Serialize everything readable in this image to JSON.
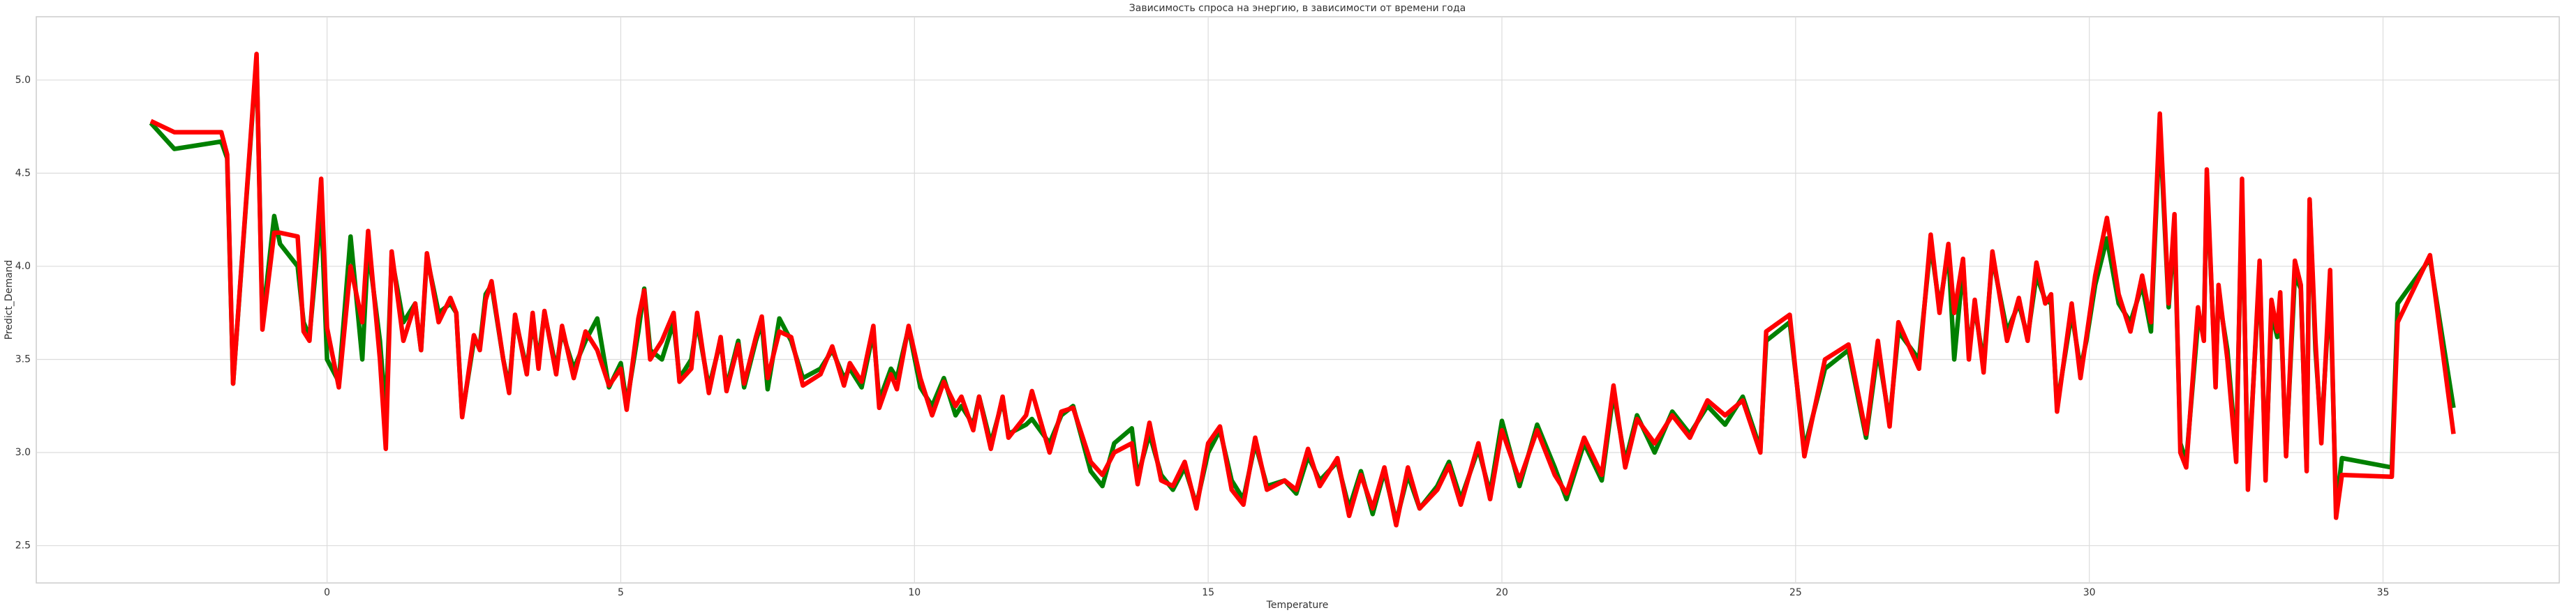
{
  "chart_data": {
    "type": "line",
    "title": "Зависимость спроса на энергию, в зависимости от времени года",
    "xlabel": "Temperature",
    "ylabel": "Predict_Demand",
    "xlim": [
      -4.95,
      38.0
    ],
    "ylim": [
      2.3,
      5.34
    ],
    "xticks": [
      0,
      5,
      10,
      15,
      20,
      25,
      30,
      35
    ],
    "yticks": [
      2.5,
      {
        "value": 3,
        "label": "3.0"
      },
      3.5,
      {
        "value": 4,
        "label": "4.0"
      },
      4.5,
      {
        "value": 5,
        "label": "5.0"
      }
    ],
    "grid": true,
    "x": [
      -3.0,
      -2.6,
      -1.8,
      -1.7,
      -1.6,
      -1.2,
      -1.1,
      -0.9,
      -0.8,
      -0.5,
      -0.4,
      -0.3,
      -0.1,
      0.0,
      0.2,
      0.4,
      0.6,
      0.7,
      0.9,
      1.0,
      1.1,
      1.3,
      1.5,
      1.6,
      1.7,
      1.9,
      2.1,
      2.2,
      2.3,
      2.5,
      2.6,
      2.7,
      2.8,
      3.0,
      3.1,
      3.2,
      3.4,
      3.5,
      3.6,
      3.7,
      3.9,
      4.0,
      4.2,
      4.4,
      4.6,
      4.8,
      5.0,
      5.1,
      5.3,
      5.4,
      5.5,
      5.7,
      5.9,
      6.0,
      6.2,
      6.3,
      6.5,
      6.7,
      6.8,
      7.0,
      7.1,
      7.3,
      7.4,
      7.5,
      7.7,
      7.9,
      8.1,
      8.4,
      8.6,
      8.8,
      8.9,
      9.1,
      9.3,
      9.4,
      9.6,
      9.7,
      9.9,
      10.1,
      10.3,
      10.5,
      10.7,
      10.8,
      11.0,
      11.1,
      11.3,
      11.5,
      11.6,
      11.9,
      12.0,
      12.3,
      12.5,
      12.7,
      13.0,
      13.2,
      13.4,
      13.7,
      13.8,
      14.0,
      14.2,
      14.4,
      14.6,
      14.8,
      15.0,
      15.2,
      15.4,
      15.6,
      15.8,
      16.0,
      16.3,
      16.5,
      16.7,
      16.9,
      17.2,
      17.4,
      17.6,
      17.8,
      18.0,
      18.2,
      18.4,
      18.6,
      18.9,
      19.1,
      19.3,
      19.6,
      19.8,
      20.0,
      20.3,
      20.6,
      20.9,
      21.1,
      21.4,
      21.7,
      21.9,
      22.1,
      22.3,
      22.6,
      22.9,
      23.2,
      23.5,
      23.8,
      24.1,
      24.4,
      24.5,
      24.9,
      25.15,
      25.5,
      25.9,
      26.2,
      26.4,
      26.6,
      26.75,
      27.1,
      27.3,
      27.45,
      27.6,
      27.7,
      27.85,
      27.95,
      28.05,
      28.2,
      28.35,
      28.6,
      28.8,
      28.95,
      29.1,
      29.25,
      29.35,
      29.45,
      29.7,
      29.85,
      29.95,
      30.1,
      30.3,
      30.5,
      30.7,
      30.9,
      31.05,
      31.2,
      31.35,
      31.45,
      31.55,
      31.65,
      31.85,
      31.95,
      32.0,
      32.15,
      32.2,
      32.35,
      32.5,
      32.6,
      32.7,
      32.9,
      33.0,
      33.1,
      33.2,
      33.25,
      33.35,
      33.5,
      33.6,
      33.7,
      33.75,
      33.85,
      33.95,
      34.1,
      34.2,
      34.3,
      35.15,
      35.25,
      35.8,
      36.2
    ],
    "series": [
      {
        "color": "#008000",
        "values": [
          4.77,
          4.63,
          4.67,
          4.58,
          3.37,
          5.12,
          3.7,
          4.27,
          4.12,
          4.0,
          3.7,
          3.62,
          4.3,
          3.5,
          3.38,
          4.16,
          3.5,
          4.1,
          3.6,
          3.2,
          4.05,
          3.7,
          3.8,
          3.55,
          4.05,
          3.75,
          3.8,
          3.75,
          3.2,
          3.6,
          3.57,
          3.85,
          3.9,
          3.5,
          3.35,
          3.72,
          3.45,
          3.7,
          3.5,
          3.75,
          3.45,
          3.65,
          3.45,
          3.6,
          3.72,
          3.35,
          3.48,
          3.26,
          3.65,
          3.88,
          3.55,
          3.5,
          3.7,
          3.4,
          3.5,
          3.7,
          3.35,
          3.6,
          3.35,
          3.6,
          3.35,
          3.6,
          3.7,
          3.34,
          3.72,
          3.6,
          3.4,
          3.45,
          3.55,
          3.4,
          3.45,
          3.35,
          3.65,
          3.28,
          3.45,
          3.4,
          3.67,
          3.35,
          3.25,
          3.4,
          3.2,
          3.25,
          3.15,
          3.3,
          3.05,
          3.28,
          3.1,
          3.15,
          3.18,
          3.05,
          3.2,
          3.25,
          2.9,
          2.82,
          3.05,
          3.13,
          2.87,
          3.1,
          2.88,
          2.8,
          2.92,
          2.72,
          3.0,
          3.12,
          2.85,
          2.75,
          3.05,
          2.82,
          2.85,
          2.78,
          2.98,
          2.85,
          2.95,
          2.7,
          2.9,
          2.67,
          2.9,
          2.63,
          2.88,
          2.7,
          2.82,
          2.95,
          2.75,
          3.02,
          2.78,
          3.17,
          2.82,
          3.15,
          2.92,
          2.75,
          3.05,
          2.85,
          3.32,
          2.95,
          3.2,
          3.0,
          3.22,
          3.1,
          3.25,
          3.15,
          3.3,
          3.02,
          3.6,
          3.7,
          3.02,
          3.45,
          3.55,
          3.08,
          3.55,
          3.17,
          3.65,
          3.5,
          4.12,
          3.78,
          4.08,
          3.5,
          4.0,
          3.55,
          3.78,
          3.48,
          4.05,
          3.65,
          3.8,
          3.62,
          3.95,
          3.82,
          3.8,
          3.25,
          3.75,
          3.45,
          3.6,
          3.9,
          4.15,
          3.8,
          3.7,
          3.9,
          3.65,
          4.75,
          3.78,
          4.2,
          3.05,
          2.95,
          3.7,
          3.65,
          4.45,
          3.4,
          3.85,
          3.55,
          3.0,
          4.4,
          2.85,
          3.98,
          2.9,
          3.75,
          3.62,
          3.82,
          3.0,
          3.95,
          3.88,
          2.92,
          4.35,
          3.55,
          3.1,
          3.9,
          2.7,
          2.97,
          2.92,
          3.8,
          4.04,
          3.24
        ]
      },
      {
        "color": "#ff0000",
        "values": [
          4.78,
          4.72,
          4.72,
          4.6,
          3.37,
          5.14,
          3.66,
          4.18,
          4.18,
          4.16,
          3.65,
          3.6,
          4.47,
          3.67,
          3.35,
          4.0,
          3.7,
          4.19,
          3.5,
          3.02,
          4.08,
          3.6,
          3.8,
          3.55,
          4.07,
          3.7,
          3.83,
          3.75,
          3.19,
          3.63,
          3.55,
          3.82,
          3.92,
          3.5,
          3.32,
          3.74,
          3.42,
          3.75,
          3.45,
          3.76,
          3.42,
          3.68,
          3.4,
          3.65,
          3.55,
          3.36,
          3.45,
          3.23,
          3.72,
          3.87,
          3.5,
          3.6,
          3.75,
          3.38,
          3.45,
          3.75,
          3.32,
          3.62,
          3.33,
          3.58,
          3.37,
          3.62,
          3.73,
          3.4,
          3.65,
          3.62,
          3.36,
          3.42,
          3.57,
          3.36,
          3.48,
          3.38,
          3.68,
          3.24,
          3.42,
          3.34,
          3.68,
          3.4,
          3.2,
          3.38,
          3.25,
          3.3,
          3.12,
          3.3,
          3.02,
          3.3,
          3.08,
          3.2,
          3.33,
          3.0,
          3.22,
          3.24,
          2.95,
          2.88,
          3.0,
          3.05,
          2.83,
          3.16,
          2.85,
          2.82,
          2.95,
          2.7,
          3.05,
          3.14,
          2.8,
          2.72,
          3.08,
          2.8,
          2.85,
          2.8,
          3.02,
          2.82,
          2.97,
          2.66,
          2.88,
          2.7,
          2.92,
          2.61,
          2.92,
          2.7,
          2.8,
          2.93,
          2.72,
          3.05,
          2.75,
          3.12,
          2.85,
          3.12,
          2.88,
          2.78,
          3.08,
          2.88,
          3.36,
          2.92,
          3.18,
          3.05,
          3.2,
          3.08,
          3.28,
          3.2,
          3.28,
          3.0,
          3.65,
          3.74,
          2.98,
          3.5,
          3.58,
          3.1,
          3.6,
          3.14,
          3.7,
          3.45,
          4.17,
          3.75,
          4.12,
          3.75,
          4.04,
          3.5,
          3.82,
          3.43,
          4.08,
          3.6,
          3.83,
          3.6,
          4.02,
          3.8,
          3.85,
          3.22,
          3.8,
          3.4,
          3.62,
          3.95,
          4.26,
          3.85,
          3.65,
          3.95,
          3.7,
          4.82,
          3.8,
          4.28,
          3.0,
          2.92,
          3.78,
          3.6,
          4.52,
          3.35,
          3.9,
          3.5,
          2.95,
          4.47,
          2.8,
          4.03,
          2.85,
          3.82,
          3.65,
          3.86,
          2.98,
          4.03,
          3.9,
          2.9,
          4.36,
          3.6,
          3.05,
          3.98,
          2.65,
          2.88,
          2.87,
          3.7,
          4.06,
          3.1
        ]
      }
    ]
  }
}
